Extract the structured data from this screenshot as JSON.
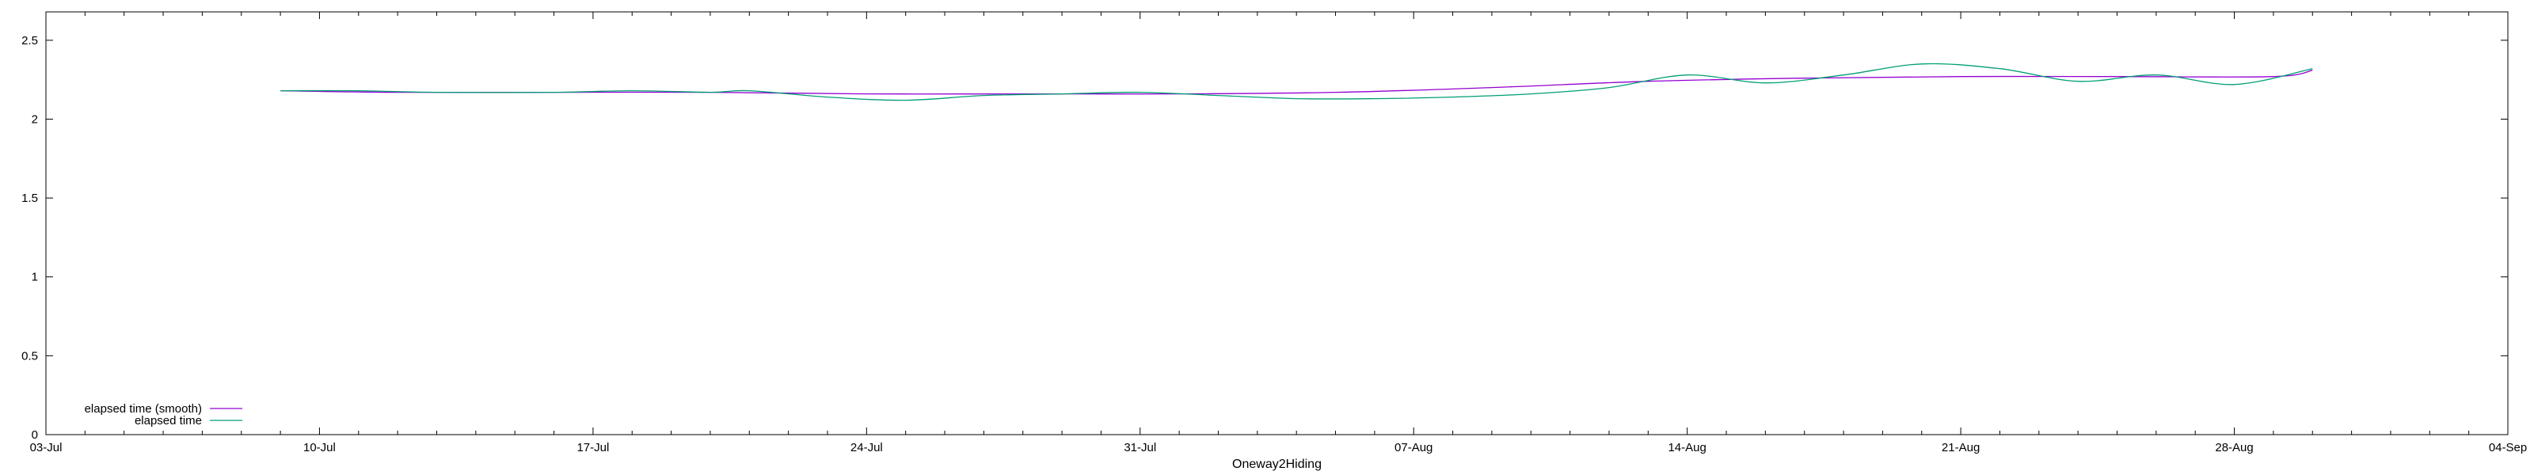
{
  "chart_data": {
    "type": "line",
    "xlabel": "Oneway2Hiding",
    "ylabel": "",
    "x_ticks": [
      "03-Jul",
      "10-Jul",
      "17-Jul",
      "24-Jul",
      "31-Jul",
      "07-Aug",
      "14-Aug",
      "21-Aug",
      "28-Aug",
      "04-Sep"
    ],
    "x_range": [
      "03-Jul",
      "04-Sep"
    ],
    "y_ticks": [
      "0",
      "0.5",
      "1",
      "1.5",
      "2",
      "2.5"
    ],
    "ylim": [
      0,
      2.68
    ],
    "grid": false,
    "legend_position": "bottom-left",
    "series": [
      {
        "name": "elapsed time (smooth)",
        "color": "#9400d3",
        "x": [
          "09-Jul",
          "12-Jul",
          "16-Jul",
          "20-Jul",
          "24-Jul",
          "28-Jul",
          "01-Aug",
          "05-Aug",
          "09-Aug",
          "13-Aug",
          "17-Aug",
          "21-Aug",
          "25-Aug",
          "29-Aug",
          "30-Aug"
        ],
        "values": [
          2.18,
          2.17,
          2.17,
          2.17,
          2.16,
          2.16,
          2.16,
          2.17,
          2.2,
          2.24,
          2.26,
          2.27,
          2.27,
          2.27,
          2.31
        ]
      },
      {
        "name": "elapsed time",
        "color": "#009e73",
        "x": [
          "09-Jul",
          "11-Jul",
          "13-Jul",
          "16-Jul",
          "18-Jul",
          "20-Jul",
          "21-Jul",
          "23-Jul",
          "25-Jul",
          "27-Jul",
          "29-Jul",
          "31-Jul",
          "02-Aug",
          "04-Aug",
          "06-Aug",
          "08-Aug",
          "10-Aug",
          "12-Aug",
          "14-Aug",
          "16-Aug",
          "18-Aug",
          "20-Aug",
          "22-Aug",
          "24-Aug",
          "26-Aug",
          "28-Aug",
          "30-Aug"
        ],
        "values": [
          2.18,
          2.18,
          2.17,
          2.17,
          2.18,
          2.17,
          2.18,
          2.14,
          2.12,
          2.15,
          2.16,
          2.17,
          2.15,
          2.13,
          2.13,
          2.14,
          2.16,
          2.2,
          2.28,
          2.23,
          2.28,
          2.35,
          2.32,
          2.24,
          2.28,
          2.22,
          2.32
        ]
      }
    ]
  }
}
